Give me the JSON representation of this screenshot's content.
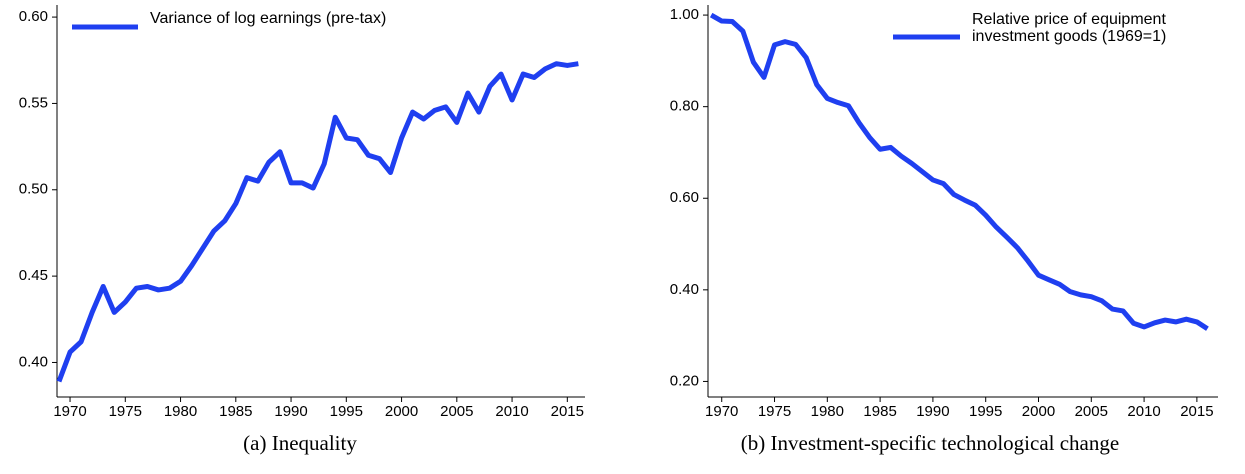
{
  "chart_data": [
    {
      "type": "line",
      "caption": "(a) Inequality",
      "x": [
        1969,
        1970,
        1971,
        1972,
        1973,
        1974,
        1975,
        1976,
        1977,
        1978,
        1979,
        1980,
        1981,
        1982,
        1983,
        1984,
        1985,
        1986,
        1987,
        1988,
        1989,
        1990,
        1991,
        1992,
        1993,
        1994,
        1995,
        1996,
        1997,
        1998,
        1999,
        2000,
        2001,
        2002,
        2003,
        2004,
        2005,
        2006,
        2007,
        2008,
        2009,
        2010,
        2011,
        2012,
        2013,
        2014,
        2015,
        2016
      ],
      "series": [
        {
          "name": "Variance of log earnings (pre-tax)",
          "color": "#1f3ff0",
          "values": [
            0.389,
            0.406,
            0.412,
            0.429,
            0.444,
            0.429,
            0.435,
            0.443,
            0.444,
            0.442,
            0.443,
            0.447,
            0.456,
            0.466,
            0.476,
            0.482,
            0.492,
            0.507,
            0.505,
            0.516,
            0.522,
            0.504,
            0.504,
            0.501,
            0.515,
            0.542,
            0.53,
            0.529,
            0.52,
            0.518,
            0.51,
            0.53,
            0.545,
            0.541,
            0.546,
            0.548,
            0.539,
            0.556,
            0.545,
            0.56,
            0.567,
            0.552,
            0.567,
            0.565,
            0.57,
            0.573,
            0.572,
            0.573
          ]
        }
      ],
      "xlim": [
        1968.82,
        2016.6
      ],
      "ylim": [
        0.38,
        0.607
      ],
      "xticks": [
        1970,
        1975,
        1980,
        1985,
        1990,
        1995,
        2000,
        2005,
        2010,
        2015
      ],
      "yticks": [
        {
          "value": 0.4,
          "label": "0.40"
        },
        {
          "value": 0.45,
          "label": "0.45"
        },
        {
          "value": 0.5,
          "label": "0.50"
        },
        {
          "value": 0.55,
          "label": "0.55"
        },
        {
          "value": 0.6,
          "label": "0.60"
        }
      ]
    },
    {
      "type": "line",
      "caption": "(b) Investment-specific technological change",
      "x": [
        1969,
        1970,
        1971,
        1972,
        1973,
        1974,
        1975,
        1976,
        1977,
        1978,
        1979,
        1980,
        1981,
        1982,
        1983,
        1984,
        1985,
        1986,
        1987,
        1988,
        1989,
        1990,
        1991,
        1992,
        1993,
        1994,
        1995,
        1996,
        1997,
        1998,
        1999,
        2000,
        2001,
        2002,
        2003,
        2004,
        2005,
        2006,
        2007,
        2008,
        2009,
        2010,
        2011,
        2012,
        2013,
        2014,
        2015,
        2016
      ],
      "series": [
        {
          "name": "Relative price of equipment investment goods (1969=1)",
          "color": "#1f3ff0",
          "values": [
            1.0,
            0.987,
            0.986,
            0.965,
            0.897,
            0.864,
            0.935,
            0.942,
            0.936,
            0.907,
            0.848,
            0.818,
            0.809,
            0.802,
            0.765,
            0.733,
            0.707,
            0.711,
            0.692,
            0.676,
            0.658,
            0.64,
            0.632,
            0.608,
            0.596,
            0.585,
            0.563,
            0.537,
            0.515,
            0.492,
            0.463,
            0.432,
            0.422,
            0.412,
            0.396,
            0.389,
            0.385,
            0.376,
            0.358,
            0.354,
            0.327,
            0.319,
            0.328,
            0.334,
            0.33,
            0.336,
            0.33,
            0.315
          ]
        }
      ],
      "xlim": [
        1968.7,
        2017.0
      ],
      "ylim": [
        0.166,
        1.022
      ],
      "xticks": [
        1970,
        1975,
        1980,
        1985,
        1990,
        1995,
        2000,
        2005,
        2010,
        2015
      ],
      "yticks": [
        {
          "value": 0.2,
          "label": "0.20"
        },
        {
          "value": 0.4,
          "label": "0.40"
        },
        {
          "value": 0.6,
          "label": "0.60"
        },
        {
          "value": 0.8,
          "label": "0.80"
        },
        {
          "value": 1.0,
          "label": "1.00"
        }
      ]
    }
  ]
}
